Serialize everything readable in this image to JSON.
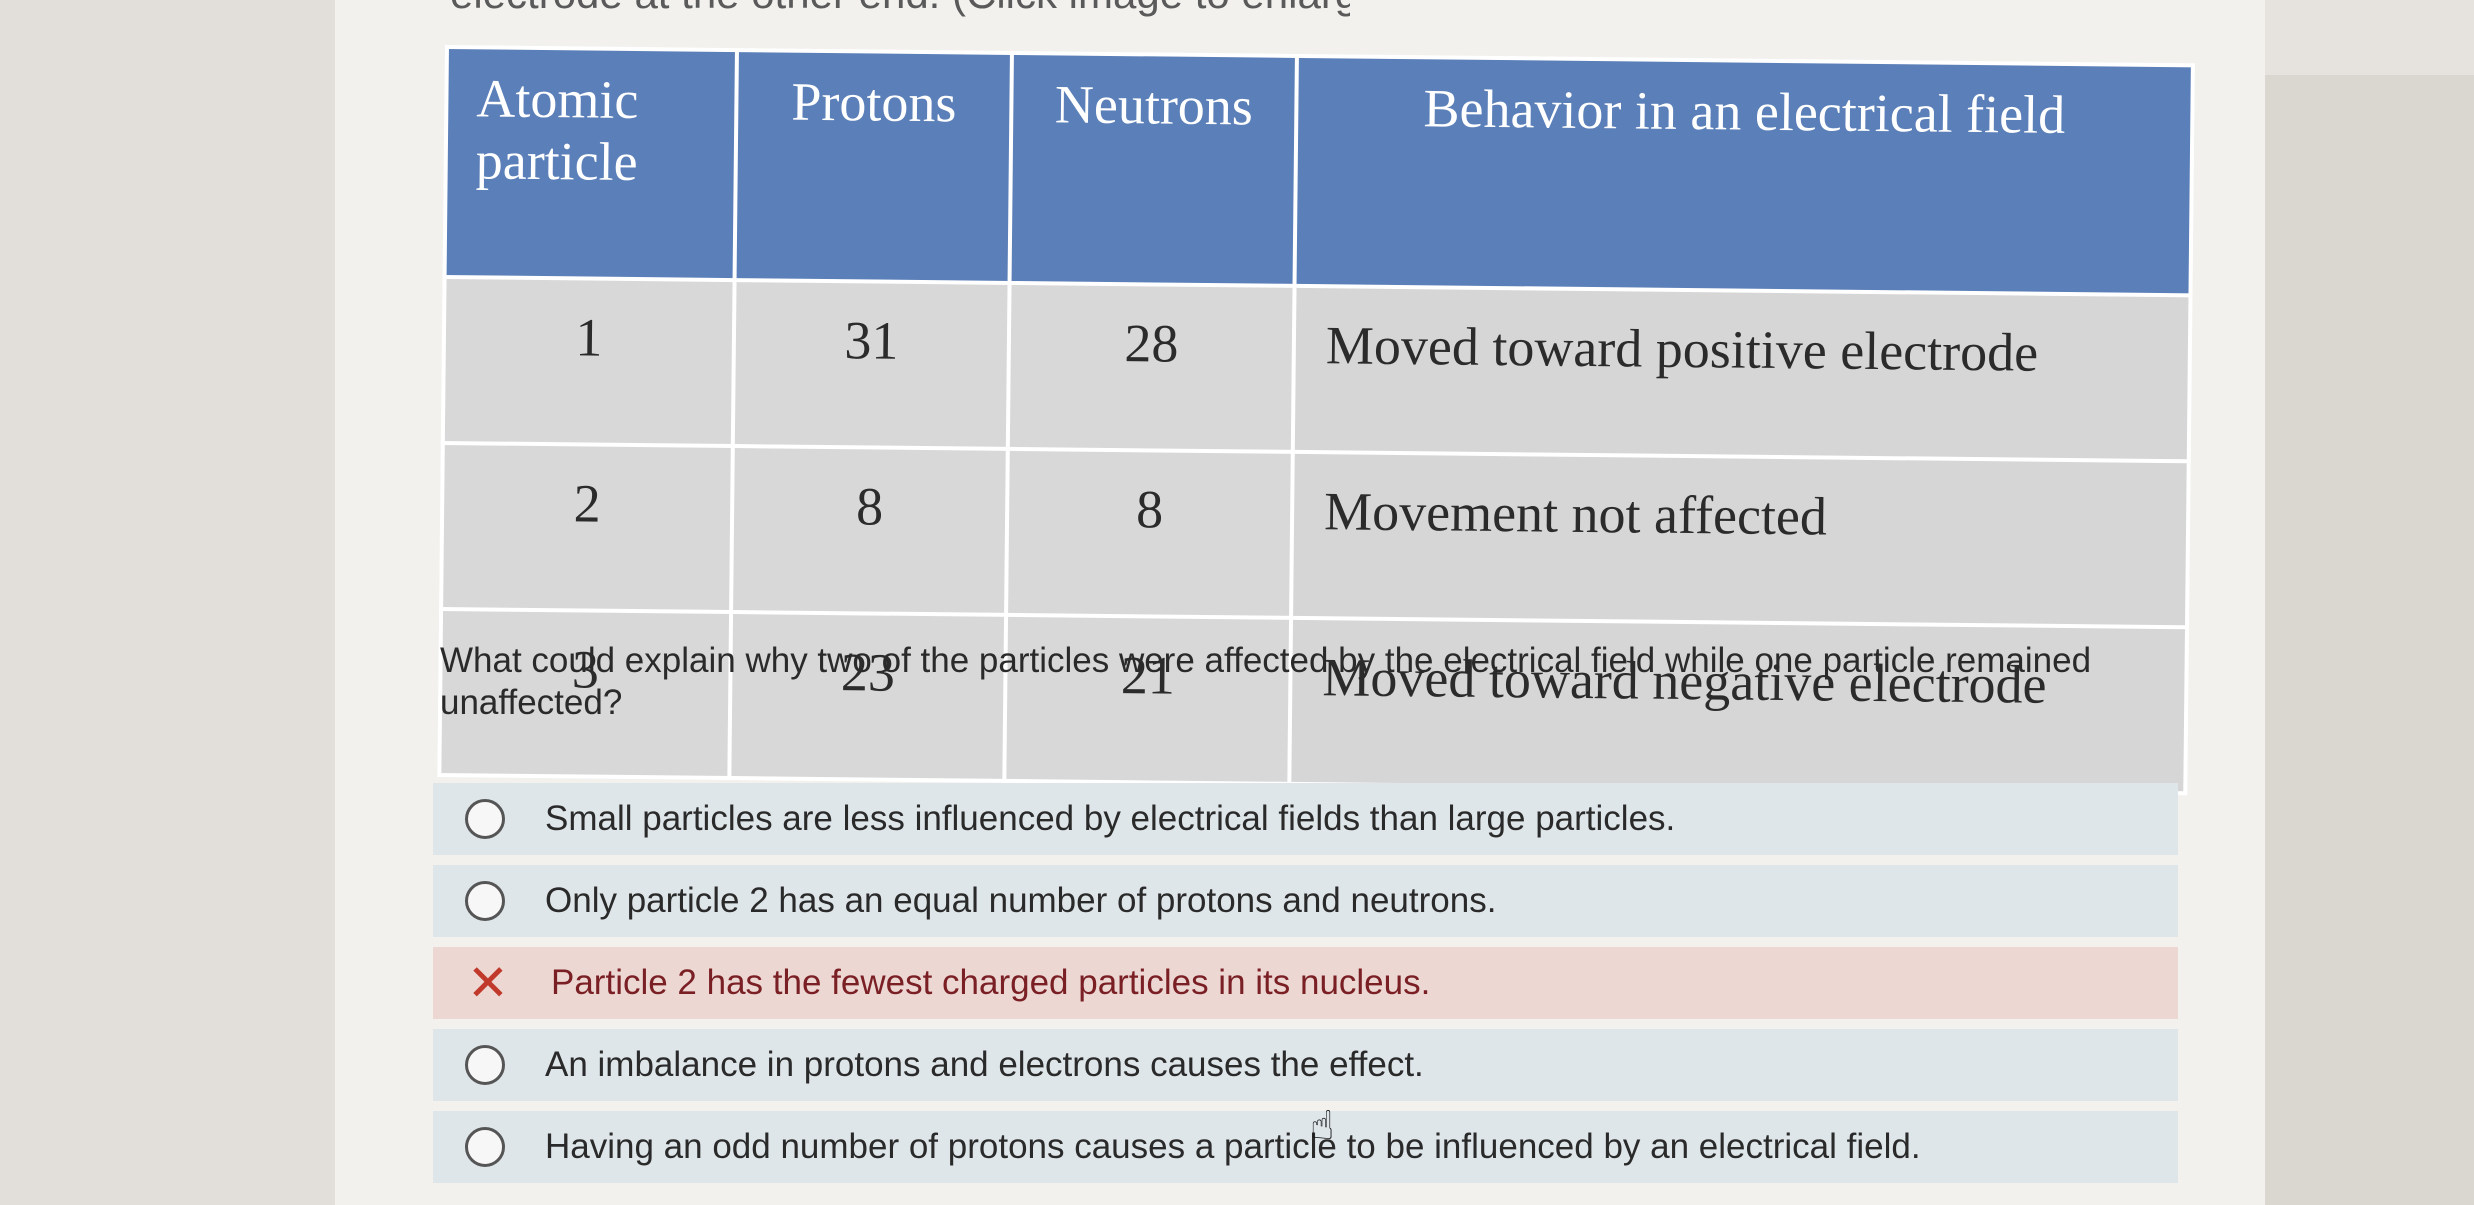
{
  "caption_fragment": "electrode at the other end. (Click image to enlarge.)",
  "table": {
    "headers": [
      "Atomic particle",
      "Protons",
      "Neutrons",
      "Behavior in an electrical field"
    ],
    "rows": [
      {
        "particle": "1",
        "protons": "31",
        "neutrons": "28",
        "behavior": "Moved toward positive electrode"
      },
      {
        "particle": "2",
        "protons": "8",
        "neutrons": "8",
        "behavior": "Movement not affected"
      },
      {
        "particle": "3",
        "protons": "23",
        "neutrons": "21",
        "behavior": "Moved toward negative electrode"
      }
    ]
  },
  "question": "What could explain why two of the particles were affected by the electrical field while one particle remained unaffected?",
  "answers": [
    {
      "text": "Small particles are less influenced by electrical fields than large particles.",
      "state": "unselected"
    },
    {
      "text": "Only particle 2 has an equal number of protons and neutrons.",
      "state": "unselected"
    },
    {
      "text": "Particle 2 has the fewest charged particles in its nucleus.",
      "state": "incorrect"
    },
    {
      "text": "An imbalance in protons and electrons causes the effect.",
      "state": "unselected"
    },
    {
      "text": "Having an odd number of protons causes a particle to be influenced by an electrical field.",
      "state": "unselected"
    }
  ],
  "icons": {
    "incorrect": "close-x-icon",
    "option": "radio-circle-icon",
    "cursor": "hand-pointer-icon"
  },
  "colors": {
    "header_blue": "#5b7fb8",
    "cell_gray": "#d8d8d8",
    "answer_bg": "#dfe6ea",
    "wrong_bg": "#ecd7d3",
    "wrong_text": "#7a1f24",
    "x_red": "#c0392b"
  }
}
